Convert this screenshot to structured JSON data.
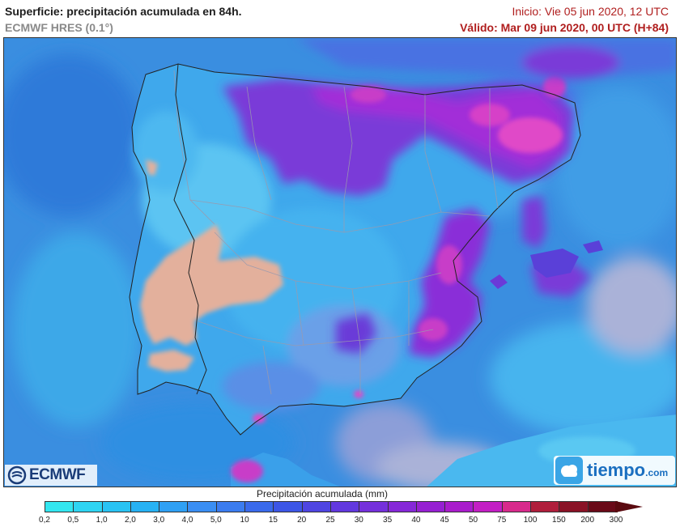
{
  "header": {
    "title": "Superficie: precipitación acumulada en 84h.",
    "model": "ECMWF HRES (0.1°)",
    "init": "Inicio: Vie 05 jun 2020, 12 UTC",
    "valid": "Válido: Mar 09 jun 2020, 00 UTC (H+84)"
  },
  "branding": {
    "left_logo_text": "ECMWF",
    "right_logo_text": "tiempo",
    "right_logo_suffix": ".com"
  },
  "legend": {
    "title": "Precipitación acumulada (mm)",
    "labels": [
      "0,2",
      "0,5",
      "1,0",
      "2,0",
      "3,0",
      "4,0",
      "5,0",
      "10",
      "15",
      "20",
      "25",
      "30",
      "35",
      "40",
      "45",
      "50",
      "75",
      "100",
      "150",
      "200",
      "300"
    ],
    "colors": [
      "#33e6f0",
      "#2ed4f2",
      "#29c3f3",
      "#27b2f4",
      "#2fa0f4",
      "#3a8ef3",
      "#3b7cf0",
      "#3a6aec",
      "#3d56e6",
      "#4f45e2",
      "#6238df",
      "#7530dc",
      "#8628d8",
      "#9620d2",
      "#a91ccc",
      "#c31ec4",
      "#d82a8c",
      "#b01e3c",
      "#8a1226",
      "#6a0a18"
    ],
    "overflow_color": "#5a0a10"
  },
  "map": {
    "ocean_color": "#3a8ee0",
    "land_dry_color": "#e3b09c",
    "heavy_color": "#a22fd8",
    "very_heavy_color": "#e04ac8",
    "border_color": "#8c8c9c"
  }
}
